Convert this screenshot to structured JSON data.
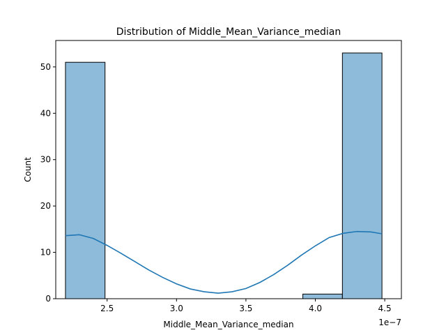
{
  "chart_data": {
    "type": "bar",
    "title": "Distribution of Middle_Mean_Variance_median",
    "xlabel": "Middle_Mean_Variance_median",
    "ylabel": "Count",
    "x_offset_label": "1e−7",
    "x_scale": 1e-07,
    "xlim": [
      2.13,
      4.62
    ],
    "ylim": [
      0,
      55.7
    ],
    "x_ticks": [
      2.5,
      3.0,
      3.5,
      4.0,
      4.5
    ],
    "x_tick_labels": [
      "2.5",
      "3.0",
      "3.5",
      "4.0",
      "4.5"
    ],
    "y_ticks": [
      0,
      10,
      20,
      30,
      40,
      50
    ],
    "y_tick_labels": [
      "0",
      "10",
      "20",
      "30",
      "40",
      "50"
    ],
    "bins": [
      {
        "x0": 2.2,
        "x1": 2.485,
        "count": 51
      },
      {
        "x0": 2.485,
        "x1": 2.77,
        "count": 0
      },
      {
        "x0": 2.77,
        "x1": 3.055,
        "count": 0
      },
      {
        "x0": 3.055,
        "x1": 3.34,
        "count": 0
      },
      {
        "x0": 3.34,
        "x1": 3.625,
        "count": 0
      },
      {
        "x0": 3.625,
        "x1": 3.91,
        "count": 0
      },
      {
        "x0": 3.91,
        "x1": 4.195,
        "count": 1
      },
      {
        "x0": 4.195,
        "x1": 4.48,
        "count": 53
      }
    ],
    "kde": {
      "x": [
        2.2,
        2.3,
        2.4,
        2.5,
        2.6,
        2.7,
        2.8,
        2.9,
        3.0,
        3.1,
        3.2,
        3.3,
        3.4,
        3.5,
        3.6,
        3.7,
        3.8,
        3.9,
        4.0,
        4.1,
        4.2,
        4.3,
        4.4,
        4.48
      ],
      "y": [
        13.6,
        13.8,
        13.0,
        11.5,
        9.8,
        8.0,
        6.2,
        4.6,
        3.2,
        2.1,
        1.5,
        1.2,
        1.5,
        2.2,
        3.5,
        5.2,
        7.2,
        9.4,
        11.4,
        13.2,
        14.1,
        14.5,
        14.4,
        14.0
      ]
    },
    "grid": false,
    "colors": {
      "bar_fill": "#8fbbdb",
      "bar_edge": "#000000",
      "kde_line": "#1f77b4"
    }
  }
}
